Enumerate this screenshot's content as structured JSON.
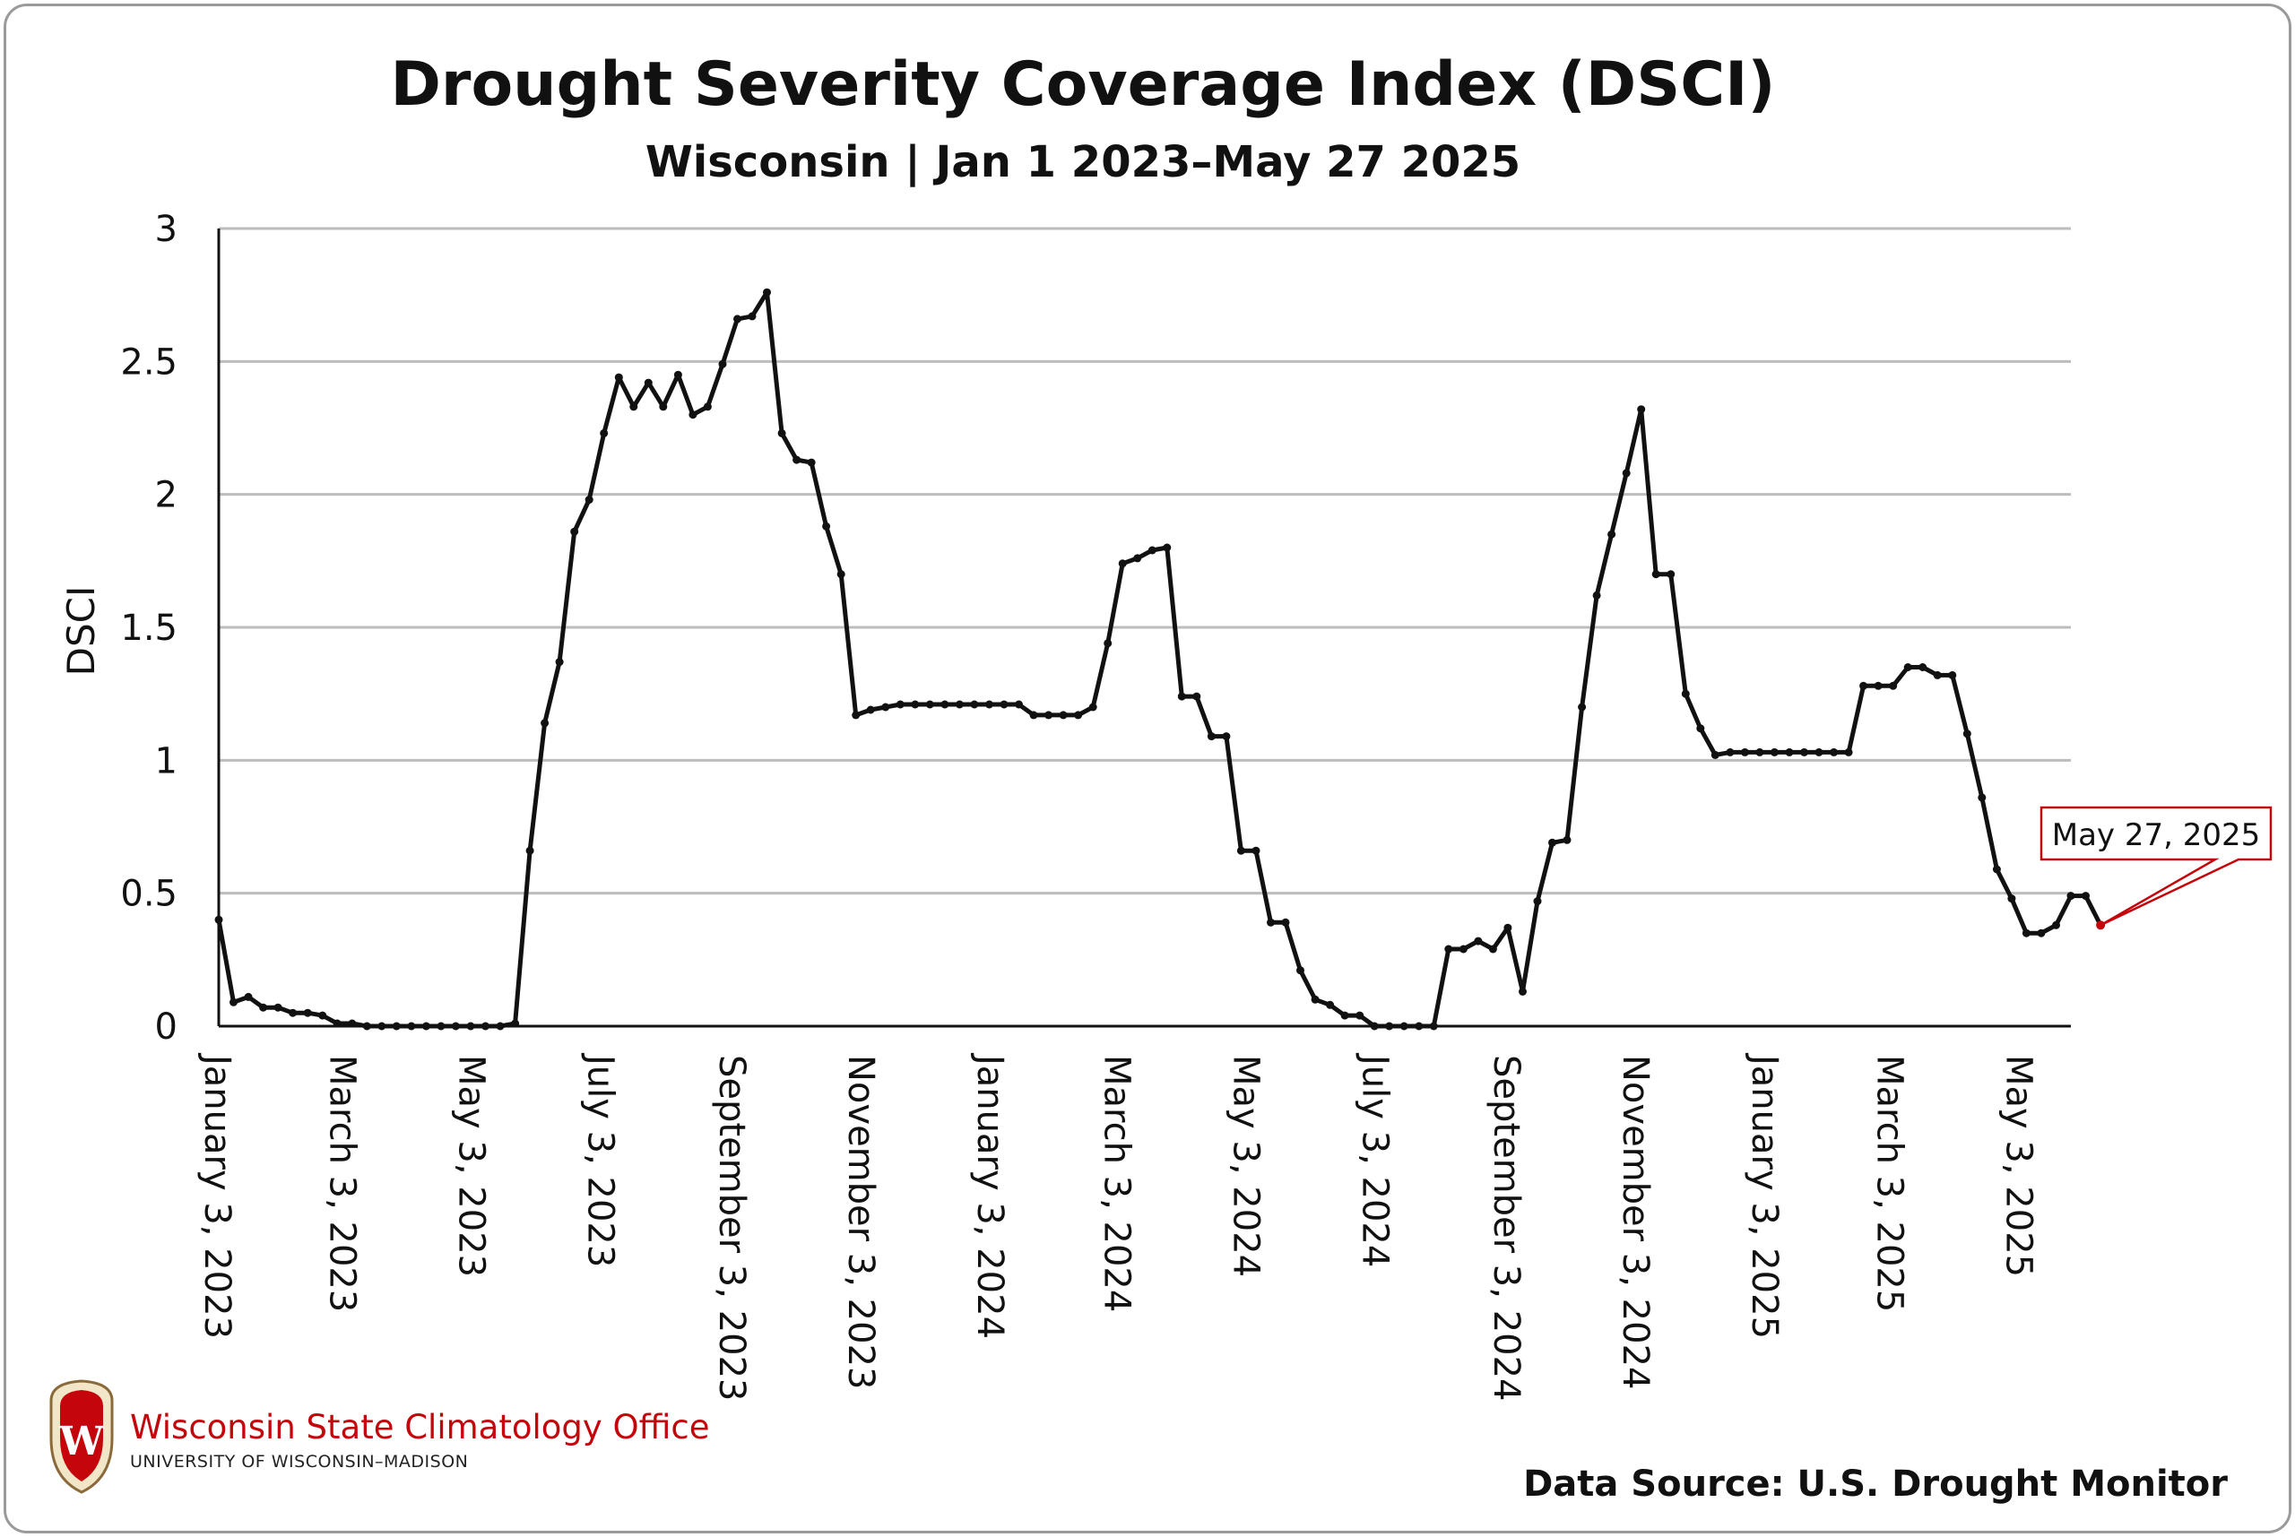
{
  "header": {
    "title": "Drought Severity Coverage Index (DSCI)",
    "subtitle": "Wisconsin | Jan 1 2023–May 27 2025"
  },
  "footer": {
    "source": "Data Source: U.S. Drought Monitor",
    "logo_title": "Wisconsin State Climatology Office",
    "logo_subtitle": "UNIVERSITY OF WISCONSIN–MADISON",
    "logo_letter": "W"
  },
  "callout": {
    "label": "May 27, 2025"
  },
  "colors": {
    "line": "#111111",
    "grid": "#bdbdbd",
    "accent": "#c5050c",
    "frame": "#9a9a9a"
  },
  "chart_data": {
    "type": "line",
    "title": "Drought Severity Coverage Index (DSCI)",
    "subtitle": "Wisconsin | Jan 1 2023–May 27 2025",
    "ylabel": "DSCI",
    "xlabel": "",
    "ylim": [
      0,
      3
    ],
    "yticks": [
      0,
      0.5,
      1,
      1.5,
      2,
      2.5,
      3
    ],
    "ytick_labels": [
      "0",
      "0.5",
      "1",
      "1.5",
      "2",
      "2.5",
      "3"
    ],
    "xticks": [
      "January 3, 2023",
      "March 3, 2023",
      "May 3, 2023",
      "July 3, 2023",
      "September 3, 2023",
      "November 3, 2023",
      "January 3, 2024",
      "March 3, 2024",
      "May 3, 2024",
      "July 3, 2024",
      "September 3, 2024",
      "November 3, 2024",
      "January 3, 2025",
      "March 3, 2025",
      "May 3, 2025"
    ],
    "grid": true,
    "legend": "none",
    "series": [
      {
        "frequency": "weekly",
        "start": "2023-01-03",
        "end": "2025-05-27",
        "values": [
          0.4,
          0.09,
          0.11,
          0.07,
          0.07,
          0.05,
          0.05,
          0.04,
          0.01,
          0.01,
          0.0,
          0.0,
          0.0,
          0.0,
          0.0,
          0.0,
          0.0,
          0.0,
          0.0,
          0.0,
          0.01,
          0.66,
          1.14,
          1.37,
          1.86,
          1.98,
          2.23,
          2.44,
          2.33,
          2.42,
          2.33,
          2.45,
          2.3,
          2.33,
          2.49,
          2.66,
          2.67,
          2.76,
          2.23,
          2.13,
          2.12,
          1.88,
          1.7,
          1.17,
          1.19,
          1.2,
          1.21,
          1.21,
          1.21,
          1.21,
          1.21,
          1.21,
          1.21,
          1.21,
          1.21,
          1.17,
          1.17,
          1.17,
          1.17,
          1.2,
          1.44,
          1.74,
          1.76,
          1.79,
          1.8,
          1.24,
          1.24,
          1.09,
          1.09,
          0.66,
          0.66,
          0.39,
          0.39,
          0.21,
          0.1,
          0.08,
          0.04,
          0.04,
          0.0,
          0.0,
          0.0,
          0.0,
          0.0,
          0.29,
          0.29,
          0.32,
          0.29,
          0.37,
          0.13,
          0.47,
          0.69,
          0.7,
          1.2,
          1.62,
          1.85,
          2.08,
          2.32,
          1.7,
          1.7,
          1.25,
          1.12,
          1.02,
          1.03,
          1.03,
          1.03,
          1.03,
          1.03,
          1.03,
          1.03,
          1.03,
          1.03,
          1.28,
          1.28,
          1.28,
          1.35,
          1.35,
          1.32,
          1.32,
          1.1,
          0.86,
          0.59,
          0.48,
          0.35,
          0.35,
          0.38,
          0.49,
          0.49,
          0.38
        ]
      }
    ]
  }
}
